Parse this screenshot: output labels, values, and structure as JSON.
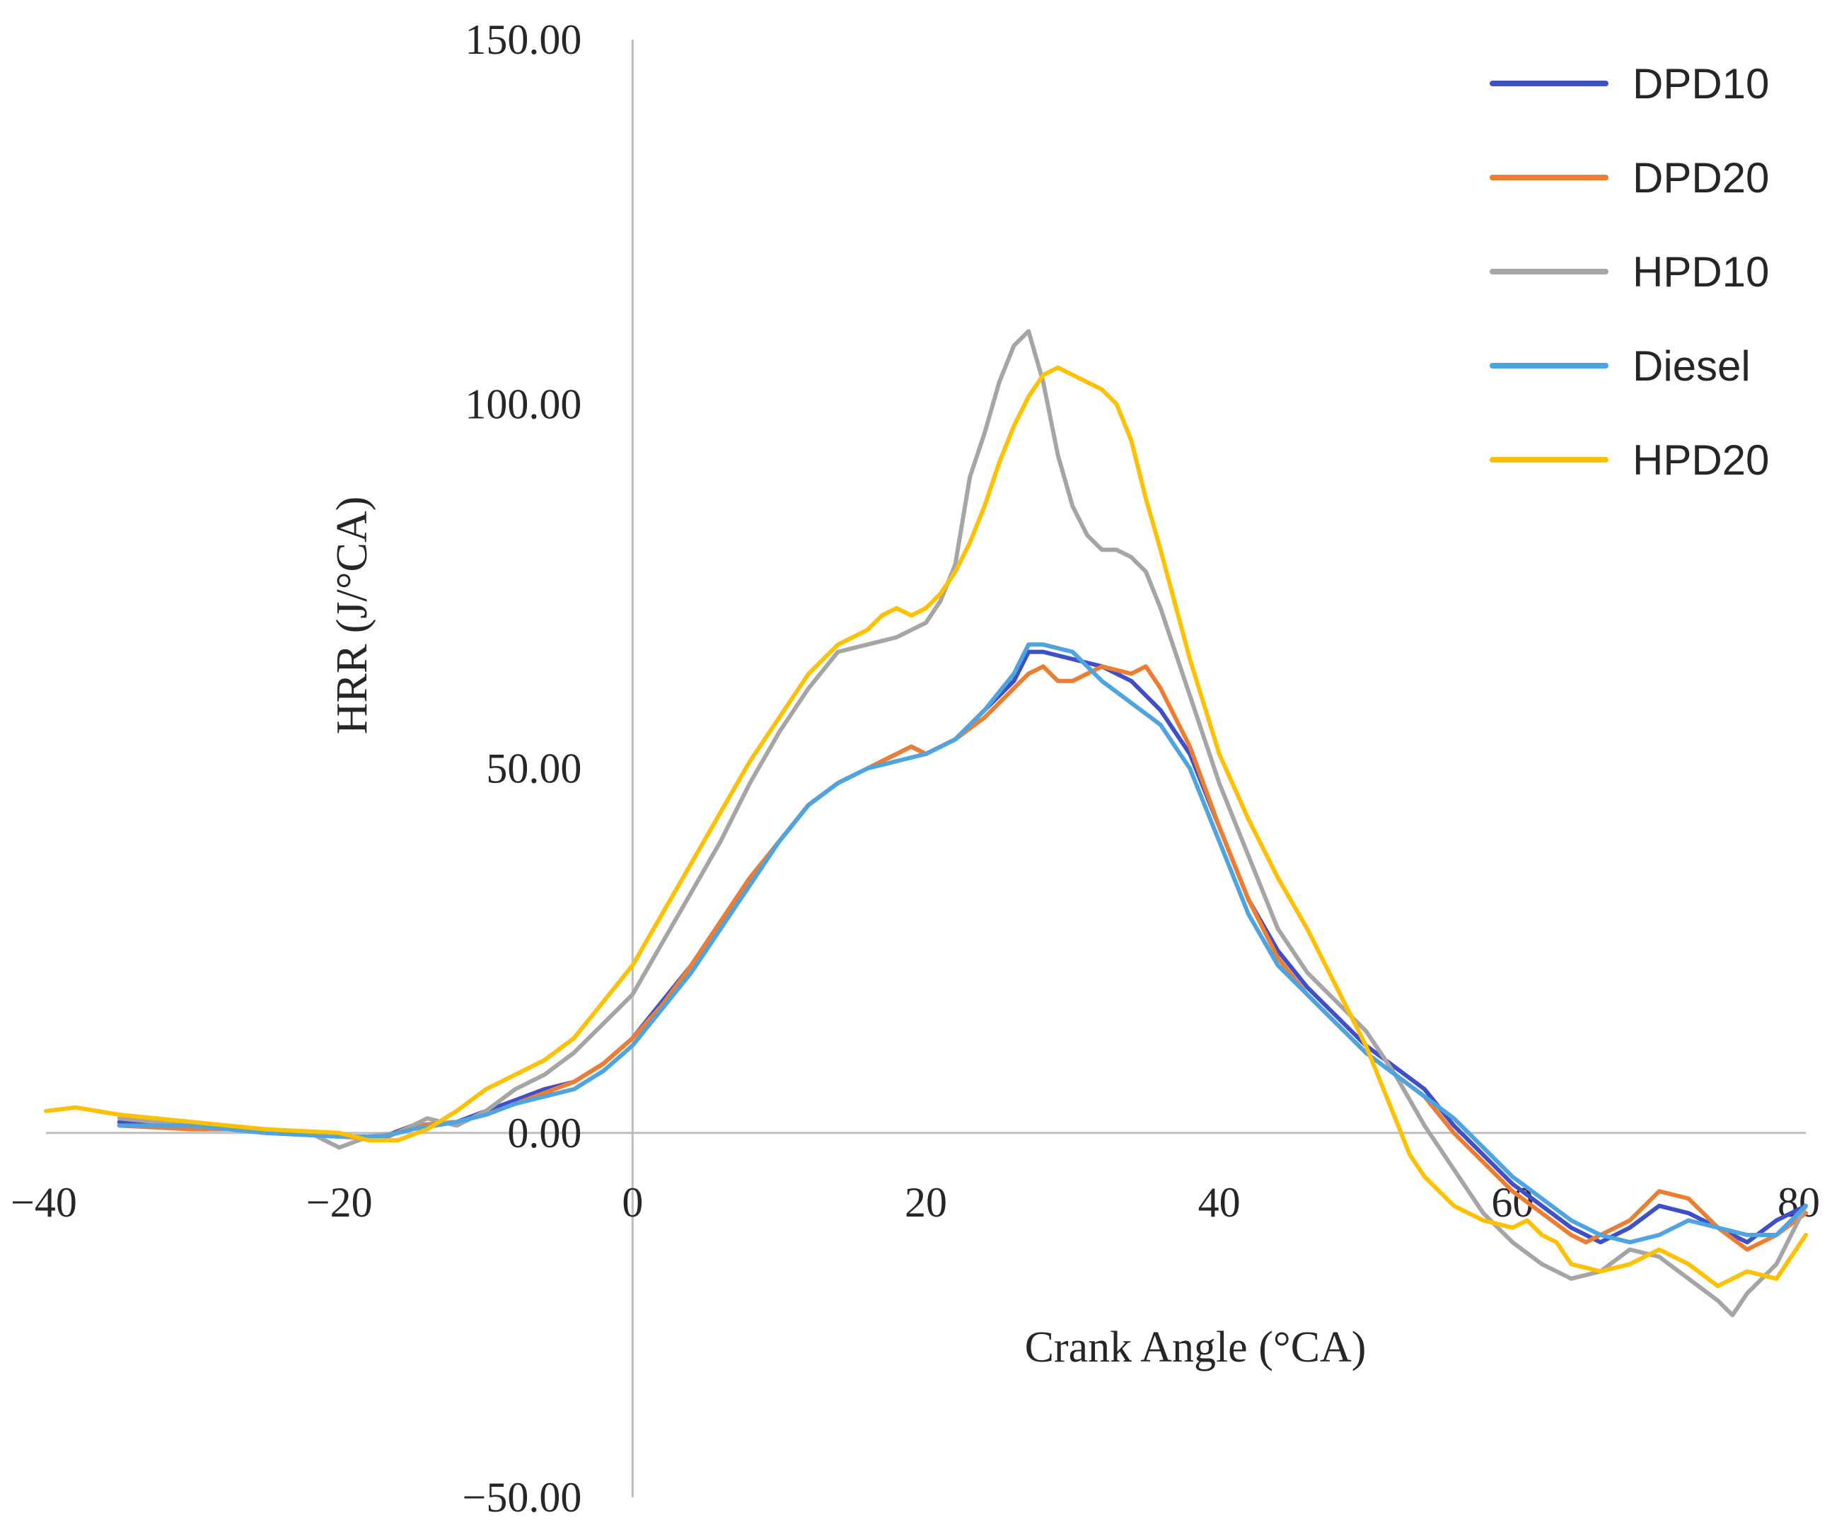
{
  "chart_data": {
    "type": "line",
    "title": "",
    "xlabel": "Crank Angle (°CA)",
    "ylabel": "HRR (J/°CA)",
    "xlim": [
      -40,
      80
    ],
    "ylim": [
      -50,
      150
    ],
    "x_ticks": [
      -40,
      -20,
      0,
      20,
      40,
      60,
      80
    ],
    "x_tick_labels": [
      "−40",
      "−20",
      "0",
      "20",
      "40",
      "60",
      "80"
    ],
    "y_ticks": [
      -50,
      0,
      50,
      100,
      150
    ],
    "y_tick_labels": [
      "−50.00",
      "0.00",
      "50.00",
      "100.00",
      "150.00"
    ],
    "grid": false,
    "legend_position": "top-right",
    "series": [
      {
        "name": "DPD10",
        "color": "#3f4fc7",
        "x": [
          -35,
          -30,
          -25,
          -20,
          -17,
          -15,
          -12,
          -10,
          -8,
          -6,
          -4,
          -2,
          0,
          2,
          4,
          6,
          8,
          10,
          12,
          14,
          16,
          18,
          19,
          20,
          22,
          24,
          26,
          27,
          28,
          30,
          32,
          34,
          36,
          38,
          40,
          42,
          44,
          46,
          48,
          50,
          52,
          54,
          56,
          58,
          60,
          62,
          64,
          66,
          68,
          70,
          72,
          74,
          76,
          78,
          80
        ],
        "y": [
          1.5,
          1,
          0,
          -0.5,
          -0.5,
          1,
          1.5,
          3,
          4.5,
          6,
          7,
          9.5,
          13,
          18,
          23,
          29,
          35,
          40,
          45,
          48,
          50,
          52,
          53,
          52,
          54,
          58,
          62,
          66,
          66,
          65,
          64,
          62,
          58,
          52,
          42,
          32,
          25,
          20,
          16,
          12,
          9,
          6,
          1,
          -3,
          -7,
          -10,
          -13,
          -15,
          -13,
          -10,
          -11,
          -13,
          -15,
          -12,
          -10
        ]
      },
      {
        "name": "DPD20",
        "color": "#ed7d31",
        "x": [
          -35,
          -30,
          -25,
          -20,
          -17,
          -15,
          -12,
          -10,
          -8,
          -6,
          -4,
          -2,
          0,
          2,
          4,
          6,
          8,
          10,
          12,
          14,
          16,
          18,
          19,
          20,
          22,
          24,
          26,
          27,
          28,
          29,
          30,
          32,
          34,
          35,
          36,
          38,
          40,
          42,
          44,
          46,
          48,
          50,
          52,
          54,
          56,
          58,
          60,
          62,
          64,
          65,
          66,
          68,
          70,
          72,
          74,
          76,
          78,
          80
        ],
        "y": [
          1,
          0.5,
          0.5,
          -0.5,
          -0.8,
          1,
          1.5,
          2.5,
          4,
          5.5,
          7,
          9.5,
          13,
          17.5,
          23,
          29,
          35,
          40,
          45,
          48,
          50,
          52,
          53,
          52,
          54,
          57,
          61,
          63,
          64,
          62,
          62,
          64,
          63,
          64,
          61,
          53,
          42,
          32,
          24,
          19,
          15,
          11,
          8,
          5,
          0,
          -4,
          -8,
          -11,
          -14,
          -15,
          -14,
          -12,
          -8,
          -9,
          -13,
          -16,
          -14,
          -11
        ]
      },
      {
        "name": "HPD10",
        "color": "#a5a5a5",
        "x": [
          -35,
          -30,
          -25,
          -22,
          -20,
          -18,
          -16,
          -14,
          -12,
          -10,
          -8,
          -6,
          -4,
          -2,
          0,
          2,
          4,
          6,
          8,
          10,
          12,
          14,
          16,
          18,
          20,
          21,
          22,
          23,
          24,
          25,
          26,
          27,
          28,
          29,
          30,
          31,
          32,
          33,
          34,
          35,
          36,
          38,
          40,
          42,
          44,
          46,
          48,
          50,
          52,
          54,
          56,
          58,
          60,
          62,
          64,
          66,
          68,
          70,
          72,
          74,
          75,
          76,
          78,
          80
        ],
        "y": [
          2,
          1,
          0,
          0,
          -2,
          -0.5,
          0,
          2,
          1,
          3,
          6,
          8,
          11,
          15,
          19,
          26,
          33,
          40,
          48,
          55,
          61,
          66,
          67,
          68,
          70,
          73,
          78,
          90,
          96,
          103,
          108,
          110,
          103,
          93,
          86,
          82,
          80,
          80,
          79,
          77,
          72,
          60,
          48,
          38,
          28,
          22,
          18,
          14,
          8,
          1,
          -5,
          -11,
          -15,
          -18,
          -20,
          -19,
          -16,
          -17,
          -20,
          -23,
          -25,
          -22,
          -18,
          -10
        ]
      },
      {
        "name": "Diesel",
        "color": "#4ea4e0",
        "x": [
          -35,
          -30,
          -25,
          -20,
          -17,
          -15,
          -12,
          -10,
          -8,
          -6,
          -4,
          -2,
          0,
          2,
          4,
          6,
          8,
          10,
          12,
          14,
          16,
          18,
          20,
          22,
          24,
          26,
          27,
          28,
          30,
          32,
          34,
          36,
          38,
          40,
          42,
          44,
          46,
          48,
          50,
          52,
          54,
          56,
          58,
          60,
          62,
          64,
          66,
          68,
          70,
          72,
          74,
          76,
          78,
          80
        ],
        "y": [
          1,
          1,
          0,
          -0.5,
          -0.5,
          0.5,
          1.5,
          2.5,
          4,
          5,
          6,
          8.5,
          12,
          17,
          22,
          28,
          34,
          40,
          45,
          48,
          50,
          51,
          52,
          54,
          58,
          63,
          67,
          67,
          66,
          62,
          59,
          56,
          50,
          40,
          30,
          23,
          19,
          15,
          11,
          8,
          5,
          2,
          -2,
          -6,
          -9,
          -12,
          -14,
          -15,
          -14,
          -12,
          -13,
          -14,
          -14,
          -10
        ]
      },
      {
        "name": "HPD20",
        "color": "#ffc000",
        "x": [
          -40,
          -38,
          -35,
          -30,
          -25,
          -20,
          -18,
          -16,
          -14,
          -12,
          -10,
          -8,
          -6,
          -4,
          -2,
          0,
          2,
          4,
          6,
          8,
          10,
          12,
          14,
          16,
          17,
          18,
          19,
          20,
          21,
          22,
          23,
          24,
          25,
          26,
          27,
          28,
          29,
          30,
          31,
          32,
          33,
          34,
          35,
          36,
          38,
          40,
          42,
          44,
          46,
          48,
          50,
          52,
          53,
          54,
          56,
          58,
          60,
          61,
          62,
          63,
          64,
          66,
          68,
          70,
          72,
          74,
          75,
          76,
          78,
          80
        ],
        "y": [
          3,
          3.5,
          2.5,
          1.5,
          0.5,
          0,
          -1,
          -1,
          0.5,
          3,
          6,
          8,
          10,
          13,
          18,
          23,
          30,
          37,
          44,
          51,
          57,
          63,
          67,
          69,
          71,
          72,
          71,
          72,
          74,
          77,
          81,
          86,
          92,
          97,
          101,
          104,
          105,
          104,
          103,
          102,
          100,
          95,
          87,
          80,
          65,
          52,
          43,
          35,
          28,
          20,
          12,
          2,
          -3,
          -6,
          -10,
          -12,
          -13,
          -12,
          -14,
          -15,
          -18,
          -19,
          -18,
          -16,
          -18,
          -21,
          -20,
          -19,
          -20,
          -14
        ]
      }
    ]
  }
}
